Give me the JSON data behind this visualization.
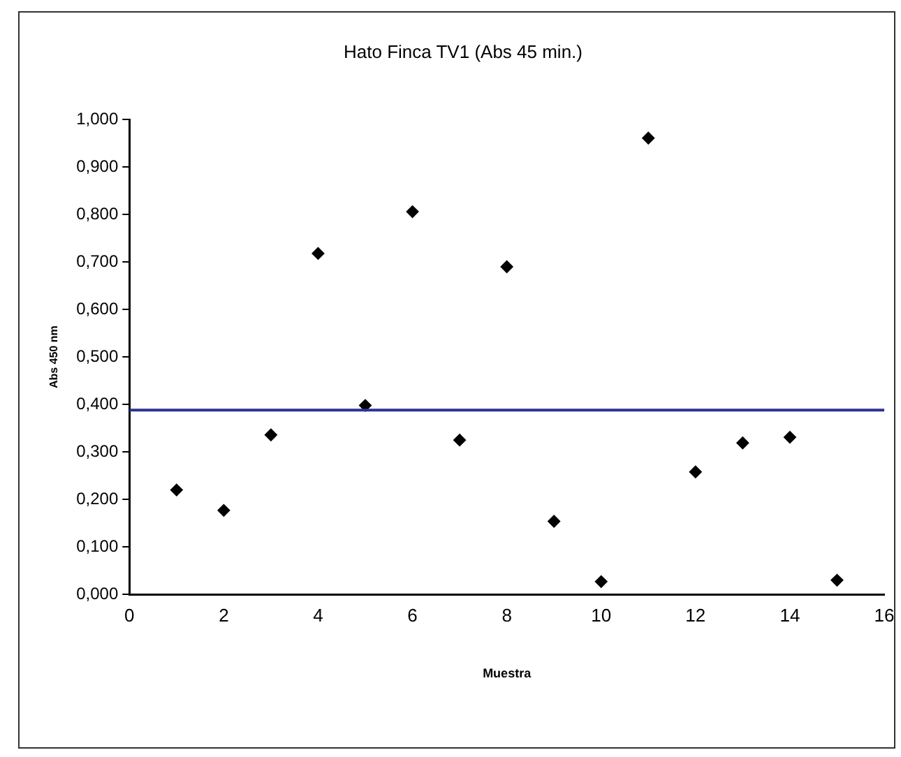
{
  "chart_data": {
    "type": "scatter",
    "title": "Hato Finca TV1 (Abs 45 min.)",
    "xlabel": "Muestra",
    "ylabel": "Abs 450 nm",
    "x": [
      1,
      2,
      3,
      4,
      5,
      6,
      7,
      8,
      9,
      10,
      11,
      12,
      13,
      14,
      15
    ],
    "series": [
      {
        "color": "#000000",
        "values": [
          0.22,
          0.177,
          0.336,
          0.718,
          0.398,
          0.806,
          0.325,
          0.69,
          0.154,
          0.027,
          0.961,
          0.258,
          0.319,
          0.331,
          0.03
        ]
      }
    ],
    "xlim": [
      0,
      16
    ],
    "xticks": [
      0,
      2,
      4,
      6,
      8,
      10,
      12,
      14,
      16
    ],
    "ylim": [
      0,
      1
    ],
    "yticks": [
      {
        "value": 0,
        "label": "0,000"
      },
      {
        "value": 0.1,
        "label": "0,100"
      },
      {
        "value": 0.2,
        "label": "0,200"
      },
      {
        "value": 0.3,
        "label": "0,300"
      },
      {
        "value": 0.4,
        "label": "0,400"
      },
      {
        "value": 0.5,
        "label": "0,500"
      },
      {
        "value": 0.6,
        "label": "0,600"
      },
      {
        "value": 0.7,
        "label": "0,700"
      },
      {
        "value": 0.8,
        "label": "0,800"
      },
      {
        "value": 0.9,
        "label": "0,900"
      },
      {
        "value": 1,
        "label": "1,000"
      }
    ],
    "ref_lines": [
      {
        "axis": "y",
        "value": 0.388,
        "color": "#2e3192"
      }
    ],
    "marker": "diamond",
    "grid": false,
    "legend": false
  }
}
